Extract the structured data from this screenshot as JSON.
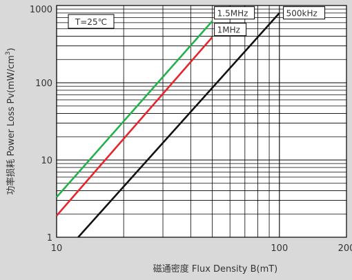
{
  "chart_data": {
    "type": "line",
    "xlabel": "磁通密度 Flux Density B(mT)",
    "ylabel_main": "功率损耗 Power Loss Pv(mW/cm",
    "ylabel_sup": "3",
    "ylabel_close": ")",
    "x_scale": "log",
    "y_scale": "log",
    "xlim": [
      10,
      200
    ],
    "ylim": [
      1,
      1000
    ],
    "grid": true,
    "x_ticks": [
      {
        "value": 10,
        "label": "10"
      },
      {
        "value": 100,
        "label": "100"
      },
      {
        "value": 200,
        "label": "200"
      }
    ],
    "y_ticks": [
      {
        "value": 1,
        "label": "1"
      },
      {
        "value": 10,
        "label": "10"
      },
      {
        "value": 100,
        "label": "100"
      },
      {
        "value": 1000,
        "label": "1000"
      }
    ],
    "annotation": "T=25℃",
    "series": [
      {
        "name": "1.5MHz",
        "color": "#22b04b",
        "points": [
          [
            10,
            3.3
          ],
          [
            50,
            630
          ]
        ]
      },
      {
        "name": "1MHz",
        "color": "#e8242b",
        "points": [
          [
            10,
            1.9
          ],
          [
            50,
            390
          ]
        ]
      },
      {
        "name": "500kHz",
        "color": "#111111",
        "points": [
          [
            12.5,
            1
          ],
          [
            100,
            800
          ]
        ]
      }
    ],
    "series_labels": [
      {
        "series": "1.5MHz",
        "anchor": [
          50,
          820
        ]
      },
      {
        "series": "1MHz",
        "anchor": [
          50,
          500
        ]
      },
      {
        "series": "500kHz",
        "anchor": [
          102,
          820
        ]
      }
    ]
  }
}
